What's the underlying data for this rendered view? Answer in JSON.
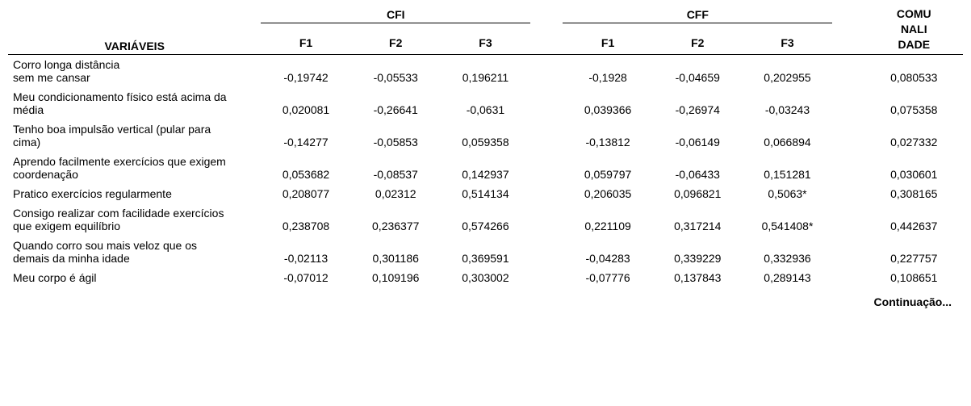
{
  "header": {
    "variaveis": "VARIÁVEIS",
    "cfi": "CFI",
    "cff": "CFF",
    "comunalidade_l1": "COMU",
    "comunalidade_l2": "NALI",
    "comunalidade_l3": "DADE",
    "f1": "F1",
    "f2": "F2",
    "f3": "F3"
  },
  "rows": [
    {
      "label_l1": "Corro longa distância",
      "label_l2": "sem me cansar",
      "cfi_f1": "-0,19742",
      "cfi_f2": "-0,05533",
      "cfi_f3": "0,196211",
      "cff_f1": "-0,1928",
      "cff_f2": "-0,04659",
      "cff_f3": "0,202955",
      "com": "0,080533"
    },
    {
      "label_l1": "Meu condicionamento físico está acima da",
      "label_l2": "média",
      "cfi_f1": "0,020081",
      "cfi_f2": "-0,26641",
      "cfi_f3": "-0,0631",
      "cff_f1": "0,039366",
      "cff_f2": "-0,26974",
      "cff_f3": "-0,03243",
      "com": "0,075358"
    },
    {
      "label_l1": "Tenho boa impulsão vertical (pular para",
      "label_l2": "cima)",
      "cfi_f1": "-0,14277",
      "cfi_f2": "-0,05853",
      "cfi_f3": "0,059358",
      "cff_f1": "-0,13812",
      "cff_f2": "-0,06149",
      "cff_f3": "0,066894",
      "com": "0,027332"
    },
    {
      "label_l1": "Aprendo facilmente exercícios que exigem",
      "label_l2": "coordenação",
      "cfi_f1": "0,053682",
      "cfi_f2": "-0,08537",
      "cfi_f3": "0,142937",
      "cff_f1": "0,059797",
      "cff_f2": "-0,06433",
      "cff_f3": "0,151281",
      "com": "0,030601"
    },
    {
      "label_l1": "Pratico exercícios regularmente",
      "label_l2": "",
      "single_line": true,
      "cfi_f1": "0,208077",
      "cfi_f2": "0,02312",
      "cfi_f3": "0,514134",
      "cff_f1": "0,206035",
      "cff_f2": "0,096821",
      "cff_f3": "0,5063*",
      "com": "0,308165"
    },
    {
      "label_l1": "Consigo realizar com facilidade exercícios",
      "label_l2": "que exigem equilíbrio",
      "cfi_f1": "0,238708",
      "cfi_f2": "0,236377",
      "cfi_f3": "0,574266",
      "cff_f1": "0,221109",
      "cff_f2": "0,317214",
      "cff_f3": "0,541408*",
      "com": "0,442637"
    },
    {
      "label_l1": "Quando corro sou mais veloz que os",
      "label_l2": "demais da minha idade",
      "cfi_f1": "-0,02113",
      "cfi_f2": "0,301186",
      "cfi_f3": "0,369591",
      "cff_f1": "-0,04283",
      "cff_f2": "0,339229",
      "cff_f3": "0,332936",
      "com": "0,227757"
    },
    {
      "label_l1": "Meu corpo é ágil",
      "label_l2": "",
      "single_line": true,
      "cfi_f1": "-0,07012",
      "cfi_f2": "0,109196",
      "cfi_f3": "0,303002",
      "cff_f1": "-0,07776",
      "cff_f2": "0,137843",
      "cff_f3": "0,289143",
      "com": "0,108651"
    }
  ],
  "footer": {
    "continuation": "Continuação..."
  },
  "style": {
    "font_family": "Arial",
    "font_size_pt": 10.5,
    "text_color": "#000000",
    "background_color": "#ffffff",
    "rule_color": "#000000"
  }
}
